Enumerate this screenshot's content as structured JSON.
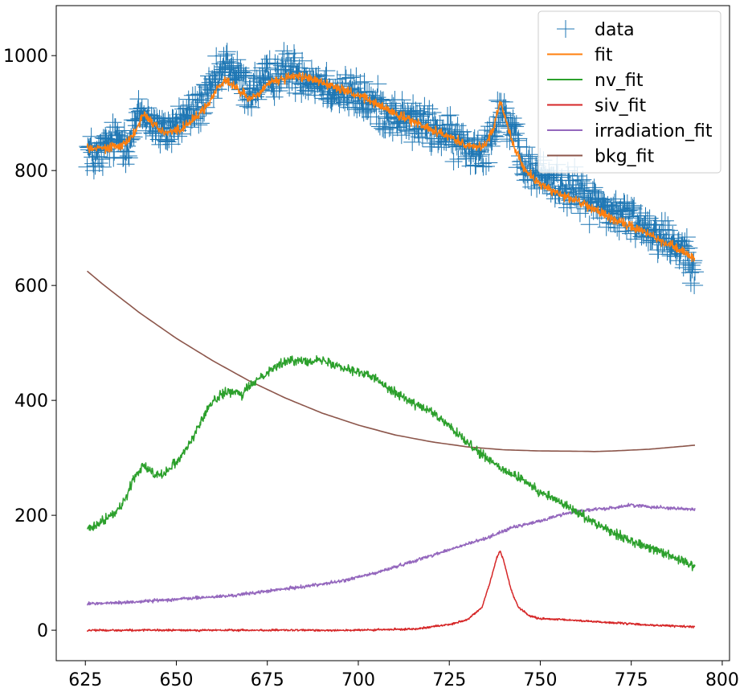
{
  "chart_data": {
    "type": "line",
    "title": "",
    "xlabel": "",
    "ylabel": "",
    "xlim": [
      617,
      802
    ],
    "ylim": [
      -53,
      1087
    ],
    "x_ticks": [
      625,
      650,
      675,
      700,
      725,
      750,
      775,
      800
    ],
    "y_ticks": [
      0,
      200,
      400,
      600,
      800,
      1000
    ],
    "grid": false,
    "legend_position": "top-right",
    "x_range": [
      625.5,
      792.5
    ],
    "series": [
      {
        "name": "data",
        "style": "markers-plus",
        "color": "#1f77b4",
        "points": [
          [
            625.5,
            838
          ],
          [
            628,
            820
          ],
          [
            631,
            843
          ],
          [
            634,
            855
          ],
          [
            637,
            848
          ],
          [
            640,
            900
          ],
          [
            643,
            890
          ],
          [
            646,
            862
          ],
          [
            650,
            880
          ],
          [
            655,
            905
          ],
          [
            658,
            920
          ],
          [
            661,
            955
          ],
          [
            664,
            985
          ],
          [
            667,
            960
          ],
          [
            670,
            935
          ],
          [
            673,
            950
          ],
          [
            676,
            962
          ],
          [
            680,
            975
          ],
          [
            684,
            970
          ],
          [
            688,
            960
          ],
          [
            692,
            945
          ],
          [
            697,
            935
          ],
          [
            702,
            922
          ],
          [
            707,
            905
          ],
          [
            712,
            890
          ],
          [
            717,
            880
          ],
          [
            722,
            868
          ],
          [
            727,
            850
          ],
          [
            732,
            838
          ],
          [
            736,
            850
          ],
          [
            739,
            915
          ],
          [
            742,
            870
          ],
          [
            745,
            810
          ],
          [
            750,
            790
          ],
          [
            755,
            778
          ],
          [
            760,
            762
          ],
          [
            765,
            745
          ],
          [
            770,
            725
          ],
          [
            775,
            715
          ],
          [
            780,
            700
          ],
          [
            785,
            680
          ],
          [
            790,
            660
          ],
          [
            792.5,
            640
          ]
        ]
      },
      {
        "name": "fit",
        "style": "line",
        "color": "#ff7f0e",
        "points": [
          [
            625.5,
            840
          ],
          [
            630,
            840
          ],
          [
            635,
            843
          ],
          [
            638,
            860
          ],
          [
            641,
            900
          ],
          [
            644,
            880
          ],
          [
            647,
            865
          ],
          [
            651,
            872
          ],
          [
            655,
            890
          ],
          [
            659,
            918
          ],
          [
            662,
            950
          ],
          [
            664,
            955
          ],
          [
            667,
            940
          ],
          [
            670,
            925
          ],
          [
            673,
            935
          ],
          [
            676,
            955
          ],
          [
            680,
            960
          ],
          [
            684,
            965
          ],
          [
            688,
            958
          ],
          [
            692,
            950
          ],
          [
            697,
            938
          ],
          [
            702,
            925
          ],
          [
            707,
            910
          ],
          [
            712,
            893
          ],
          [
            717,
            880
          ],
          [
            722,
            868
          ],
          [
            727,
            853
          ],
          [
            732,
            840
          ],
          [
            735,
            845
          ],
          [
            737,
            870
          ],
          [
            739,
            920
          ],
          [
            741,
            880
          ],
          [
            743,
            835
          ],
          [
            746,
            800
          ],
          [
            750,
            775
          ],
          [
            755,
            760
          ],
          [
            760,
            748
          ],
          [
            765,
            732
          ],
          [
            770,
            715
          ],
          [
            775,
            702
          ],
          [
            780,
            690
          ],
          [
            785,
            673
          ],
          [
            790,
            655
          ],
          [
            792.5,
            648
          ]
        ]
      },
      {
        "name": "nv_fit",
        "style": "line",
        "color": "#2ca02c",
        "points": [
          [
            625.5,
            175
          ],
          [
            630,
            190
          ],
          [
            635,
            215
          ],
          [
            638,
            260
          ],
          [
            641,
            290
          ],
          [
            644,
            270
          ],
          [
            647,
            275
          ],
          [
            651,
            300
          ],
          [
            655,
            340
          ],
          [
            659,
            390
          ],
          [
            662,
            410
          ],
          [
            665,
            415
          ],
          [
            668,
            410
          ],
          [
            671,
            430
          ],
          [
            675,
            450
          ],
          [
            679,
            465
          ],
          [
            683,
            470
          ],
          [
            687,
            470
          ],
          [
            691,
            468
          ],
          [
            695,
            460
          ],
          [
            700,
            450
          ],
          [
            705,
            437
          ],
          [
            710,
            415
          ],
          [
            715,
            395
          ],
          [
            720,
            380
          ],
          [
            725,
            355
          ],
          [
            730,
            325
          ],
          [
            735,
            300
          ],
          [
            740,
            278
          ],
          [
            745,
            262
          ],
          [
            750,
            240
          ],
          [
            755,
            225
          ],
          [
            760,
            205
          ],
          [
            765,
            188
          ],
          [
            770,
            170
          ],
          [
            775,
            155
          ],
          [
            780,
            145
          ],
          [
            785,
            133
          ],
          [
            790,
            117
          ],
          [
            792.5,
            113
          ]
        ]
      },
      {
        "name": "siv_fit",
        "style": "line",
        "color": "#d62728",
        "points": [
          [
            625.5,
            0
          ],
          [
            650,
            0
          ],
          [
            675,
            0
          ],
          [
            700,
            0
          ],
          [
            715,
            2
          ],
          [
            725,
            10
          ],
          [
            730,
            18
          ],
          [
            734,
            40
          ],
          [
            736,
            80
          ],
          [
            738,
            125
          ],
          [
            739,
            138
          ],
          [
            740,
            120
          ],
          [
            742,
            70
          ],
          [
            744,
            40
          ],
          [
            747,
            25
          ],
          [
            750,
            20
          ],
          [
            760,
            17
          ],
          [
            770,
            13
          ],
          [
            780,
            9
          ],
          [
            792.5,
            6
          ]
        ]
      },
      {
        "name": "irradiation_fit",
        "style": "line",
        "color": "#9467bd",
        "points": [
          [
            625.5,
            46
          ],
          [
            635,
            48
          ],
          [
            645,
            52
          ],
          [
            655,
            56
          ],
          [
            665,
            60
          ],
          [
            675,
            68
          ],
          [
            685,
            76
          ],
          [
            695,
            85
          ],
          [
            705,
            100
          ],
          [
            715,
            120
          ],
          [
            725,
            140
          ],
          [
            735,
            160
          ],
          [
            742,
            178
          ],
          [
            750,
            190
          ],
          [
            755,
            200
          ],
          [
            760,
            207
          ],
          [
            765,
            210
          ],
          [
            770,
            213
          ],
          [
            775,
            218
          ],
          [
            780,
            215
          ],
          [
            785,
            213
          ],
          [
            792.5,
            210
          ]
        ]
      },
      {
        "name": "bkg_fit",
        "style": "line",
        "color": "#8c564b",
        "points": [
          [
            625.5,
            625
          ],
          [
            630,
            601
          ],
          [
            640,
            552
          ],
          [
            650,
            508
          ],
          [
            660,
            469
          ],
          [
            670,
            434
          ],
          [
            680,
            404
          ],
          [
            690,
            378
          ],
          [
            700,
            357
          ],
          [
            710,
            340
          ],
          [
            720,
            328
          ],
          [
            730,
            319
          ],
          [
            740,
            314
          ],
          [
            750,
            312
          ],
          [
            760,
            311.5
          ],
          [
            765,
            311
          ],
          [
            770,
            312
          ],
          [
            780,
            315
          ],
          [
            792.5,
            322
          ]
        ]
      }
    ]
  }
}
